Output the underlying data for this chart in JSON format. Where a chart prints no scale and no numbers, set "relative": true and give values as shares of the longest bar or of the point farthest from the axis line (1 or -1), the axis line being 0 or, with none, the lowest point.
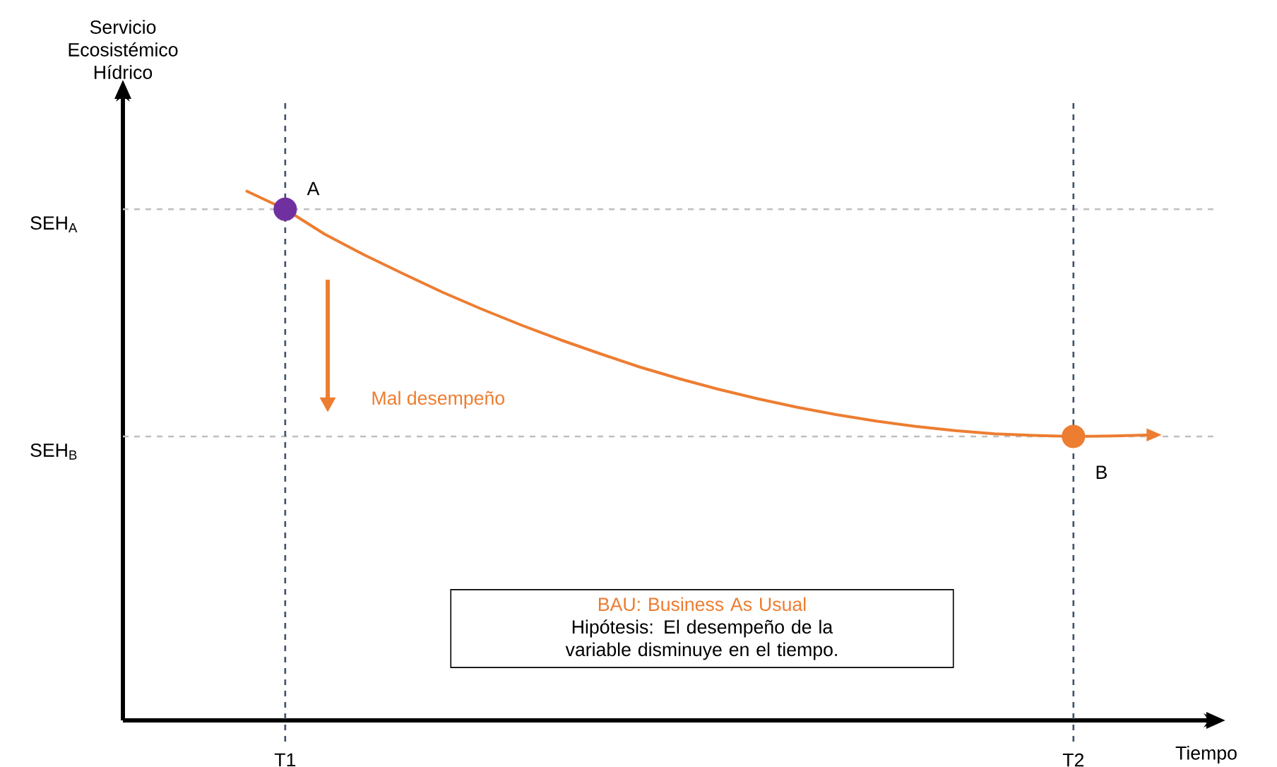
{
  "chart_data": {
    "type": "line",
    "relative": true,
    "xlabel": "Tiempo",
    "categories": [
      null,
      "T1",
      null,
      null,
      null,
      null,
      null,
      null,
      null,
      null,
      null,
      null,
      null,
      null,
      null,
      null,
      null,
      null,
      null,
      null,
      null,
      "T2",
      null,
      null
    ],
    "series": [
      {
        "color": "#ed7d31",
        "values": [
          1,
          0.965,
          0.918,
          0.879,
          0.843,
          0.808,
          0.776,
          0.746,
          0.718,
          0.692,
          0.667,
          0.645,
          0.625,
          0.607,
          0.591,
          0.577,
          0.565,
          0.555,
          0.547,
          0.541,
          0.538,
          0.536,
          0.537,
          0.539
        ],
        "marker": "none",
        "line_style": "solid"
      },
      {
        "type": "scatter",
        "x": [
          "T1",
          "T2"
        ],
        "values": [
          0.965,
          0.536
        ],
        "colors": [
          "#7030a0",
          "#ed7d31"
        ],
        "marker": "circle"
      }
    ],
    "ref_lines": [
      {
        "axis": "y",
        "value": 0.965,
        "label": "SEH$_{A}$",
        "color": "#bfbfbf",
        "line_style": "dashed"
      },
      {
        "axis": "y",
        "value": 0.536,
        "label": "SEH$_{B}$",
        "color": "#bfbfbf",
        "line_style": "dashed"
      },
      {
        "axis": "x",
        "value": "T1",
        "color": "#44546a",
        "line_style": "dashed"
      },
      {
        "axis": "x",
        "value": "T2",
        "color": "#44546a",
        "line_style": "dashed"
      }
    ],
    "annotations": [
      {
        "text": "A",
        "x": "T1",
        "y": 0.965
      },
      {
        "text": "B",
        "x": "T2",
        "y": 0.536
      },
      "Servicio Ecosistémico Hídrico",
      "Mal desempeño",
      "BAU: Business As Usual",
      "Hipótesis: El desempeño de la variable disminuye en el tiempo."
    ]
  }
}
